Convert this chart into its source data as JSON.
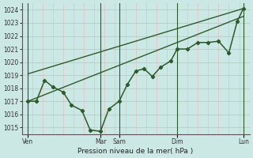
{
  "background_color": "#cce8e4",
  "grid_color_major": "#b0c8c0",
  "grid_color_minor": "#e8b8b8",
  "line_color": "#2d5a2d",
  "xlabel": "Pression niveau de la mer( hPa )",
  "ylim": [
    1014.5,
    1024.5
  ],
  "yticks": [
    1015,
    1016,
    1017,
    1018,
    1019,
    1020,
    1021,
    1022,
    1023,
    1024
  ],
  "xlim": [
    0,
    11
  ],
  "xtick_labels_major": [
    "Ven",
    "Mar",
    "Sam",
    "Dim",
    "Lun"
  ],
  "xtick_positions_major": [
    0.3,
    3.8,
    4.7,
    7.5,
    10.7
  ],
  "vline_positions": [
    0.3,
    3.8,
    4.7,
    7.5,
    10.7
  ],
  "trend1_x": [
    0.3,
    10.7
  ],
  "trend1_y": [
    1017.0,
    1023.5
  ],
  "trend2_x": [
    0.3,
    10.7
  ],
  "trend2_y": [
    1019.1,
    1024.1
  ],
  "zigzag_x": [
    0.3,
    0.7,
    1.1,
    1.5,
    2.0,
    2.4,
    2.9,
    3.3,
    3.8,
    4.2,
    4.7,
    5.1,
    5.5,
    5.9,
    6.3,
    6.7,
    7.2,
    7.5,
    8.0,
    8.5,
    9.0,
    9.5,
    10.0,
    10.4,
    10.7
  ],
  "zigzag_y": [
    1017.0,
    1017.0,
    1018.6,
    1018.1,
    1017.7,
    1016.7,
    1016.3,
    1014.8,
    1014.7,
    1016.4,
    1017.0,
    1018.3,
    1019.3,
    1019.5,
    1018.9,
    1019.6,
    1020.1,
    1021.0,
    1021.0,
    1021.5,
    1021.5,
    1021.6,
    1020.7,
    1023.1,
    1024.1
  ],
  "figsize": [
    3.2,
    2.0
  ],
  "dpi": 100
}
